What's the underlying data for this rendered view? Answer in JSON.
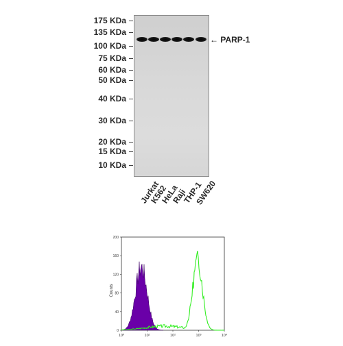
{
  "western_blot": {
    "markers": [
      "175 KDa",
      "135 KDa",
      "100 KDa",
      "75 KDa",
      "60 KDa",
      "50 KDa",
      "40 KDa",
      "30 KDa",
      "20 KDa",
      "15 KDa",
      "10 KDa"
    ],
    "band_label": "PARP-1",
    "lanes": [
      "Jurkat",
      "K562",
      "HeLa",
      "Raji",
      "THP-1",
      "SW620"
    ],
    "colors": {
      "membrane": "#d6d6d6",
      "band": "#0a0a0a"
    }
  },
  "flow_histogram": {
    "ylabel": "Counts",
    "y_ticks": [
      "0",
      "40",
      "80",
      "120",
      "160",
      "200"
    ],
    "x_ticks": [
      "10⁰",
      "10¹",
      "10²",
      "10³",
      "10⁴"
    ],
    "colors": {
      "control_fill": "#6a00a8",
      "stained_line": "#33ee22",
      "axes": "#333333"
    }
  }
}
